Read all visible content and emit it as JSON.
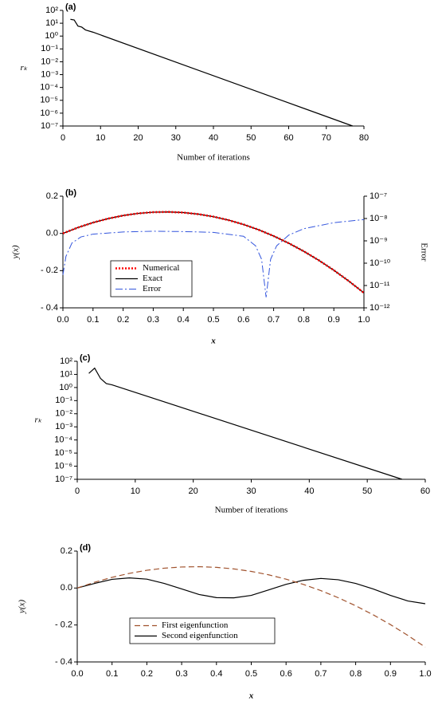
{
  "chart_data": [
    {
      "type": "line",
      "label": "(a)",
      "x_label": "Number of iterations",
      "y_label": "rₖ",
      "xlim": [
        0,
        80
      ],
      "xticks": [
        0,
        10,
        20,
        30,
        40,
        50,
        60,
        70,
        80
      ],
      "ylim": [
        1e-07,
        100
      ],
      "log": true,
      "yticks": [
        {
          "value": 100,
          "label": "10²"
        },
        {
          "value": 10,
          "label": "10¹"
        },
        {
          "value": 1,
          "label": "10⁰"
        },
        {
          "value": 0.1,
          "label": "10⁻¹"
        },
        {
          "value": 0.01,
          "label": "10⁻²"
        },
        {
          "value": 0.001,
          "label": "10⁻³"
        },
        {
          "value": 0.0001,
          "label": "10⁻⁴"
        },
        {
          "value": 1e-05,
          "label": "10⁻⁵"
        },
        {
          "value": 1e-06,
          "label": "10⁻⁶"
        },
        {
          "value": 1e-07,
          "label": "10⁻⁷"
        }
      ],
      "x": [
        2,
        3,
        4,
        5,
        6,
        8,
        77
      ],
      "series": [
        {
          "color": "#000000",
          "style": "solid",
          "values": [
            20,
            18,
            6,
            5,
            3,
            2,
            1e-07
          ]
        }
      ]
    },
    {
      "type": "line",
      "label": "(b)",
      "x_label": "x",
      "y_label": "y(x)",
      "y2_label": "Error",
      "xlim": [
        0,
        1
      ],
      "xticks": [
        {
          "value": 0,
          "label": "0.0"
        },
        0.1,
        0.2,
        0.3,
        0.4,
        0.5,
        0.6,
        0.7,
        0.8,
        0.9,
        {
          "value": 1,
          "label": "1.0"
        }
      ],
      "ylim": [
        -0.4,
        0.2
      ],
      "yticks": [
        {
          "value": -0.4,
          "label": "- 0.4"
        },
        {
          "value": -0.2,
          "label": "- 0.2"
        },
        {
          "value": 0,
          "label": "0.0"
        },
        0.2
      ],
      "y2lim": [
        1e-12,
        1e-07
      ],
      "y2log": true,
      "y2ticks": [
        {
          "value": 1e-07,
          "label": "10⁻⁷"
        },
        {
          "value": 1e-08,
          "label": "10⁻⁸"
        },
        {
          "value": 1e-09,
          "label": "10⁻⁹"
        },
        {
          "value": 1e-10,
          "label": "10⁻¹⁰"
        },
        {
          "value": 1e-11,
          "label": "10⁻¹¹"
        },
        {
          "value": 1e-12,
          "label": "10⁻¹²"
        }
      ],
      "legend": "lower left",
      "x": [
        0,
        0.05,
        0.1,
        0.15,
        0.2,
        0.25,
        0.3,
        0.35,
        0.4,
        0.45,
        0.5,
        0.55,
        0.6,
        0.65,
        0.7,
        0.75,
        0.8,
        0.85,
        0.9,
        0.95,
        1
      ],
      "series": [
        {
          "name": "Numerical",
          "color": "#ff0000",
          "style": "dotted",
          "values": [
            0,
            0.0315,
            0.058,
            0.0795,
            0.096,
            0.1075,
            0.114,
            0.1155,
            0.112,
            0.1035,
            0.09,
            0.0715,
            0.048,
            0.0195,
            -0.014,
            -0.0525,
            -0.096,
            -0.1445,
            -0.198,
            -0.2565,
            -0.32
          ]
        },
        {
          "name": "Exact",
          "color": "#000000",
          "style": "solid",
          "values": [
            0,
            0.0315,
            0.058,
            0.0795,
            0.096,
            0.1075,
            0.114,
            0.1155,
            0.112,
            0.1035,
            0.09,
            0.0715,
            0.048,
            0.0195,
            -0.014,
            -0.0525,
            -0.096,
            -0.1445,
            -0.198,
            -0.2565,
            -0.32
          ]
        },
        {
          "name": "Error",
          "color": "#3355dd",
          "style": "dashdot",
          "axis": "y2",
          "x": [
            0,
            0.01,
            0.03,
            0.06,
            0.1,
            0.2,
            0.3,
            0.4,
            0.5,
            0.6,
            0.64,
            0.66,
            0.675,
            0.69,
            0.71,
            0.75,
            0.8,
            0.9,
            1
          ],
          "values": [
            3e-11,
            2e-10,
            8e-10,
            1.5e-09,
            2e-09,
            2.5e-09,
            2.7e-09,
            2.6e-09,
            2.4e-09,
            1.6e-09,
            6e-10,
            1.5e-10,
            3e-12,
            1.5e-10,
            6e-10,
            1.8e-09,
            3.5e-09,
            6.5e-09,
            9e-09
          ]
        }
      ]
    },
    {
      "type": "line",
      "label": "(c)",
      "x_label": "Number of iterations",
      "y_label": "rₖ",
      "xlim": [
        0,
        60
      ],
      "xticks": [
        0,
        10,
        20,
        30,
        40,
        50,
        60
      ],
      "ylim": [
        1e-07,
        100
      ],
      "log": true,
      "yticks": [
        {
          "value": 100,
          "label": "10²"
        },
        {
          "value": 10,
          "label": "10¹"
        },
        {
          "value": 1,
          "label": "10⁰"
        },
        {
          "value": 0.1,
          "label": "10⁻¹"
        },
        {
          "value": 0.01,
          "label": "10⁻²"
        },
        {
          "value": 0.001,
          "label": "10⁻³"
        },
        {
          "value": 0.0001,
          "label": "10⁻⁴"
        },
        {
          "value": 1e-05,
          "label": "10⁻⁵"
        },
        {
          "value": 1e-06,
          "label": "10⁻⁶"
        },
        {
          "value": 1e-07,
          "label": "10⁻⁷"
        }
      ],
      "x": [
        2,
        3,
        4,
        5,
        6,
        56
      ],
      "series": [
        {
          "color": "#000000",
          "style": "solid",
          "values": [
            12,
            30,
            5,
            2,
            1.6,
            1e-07
          ]
        }
      ]
    },
    {
      "type": "line",
      "label": "(d)",
      "x_label": "x",
      "y_label": "y(x)",
      "xlim": [
        0,
        1
      ],
      "xticks": [
        {
          "value": 0,
          "label": "0.0"
        },
        0.1,
        0.2,
        0.3,
        0.4,
        0.5,
        0.6,
        0.7,
        0.8,
        0.9,
        {
          "value": 1,
          "label": "1.0"
        }
      ],
      "ylim": [
        -0.4,
        0.2
      ],
      "yticks": [
        {
          "value": -0.4,
          "label": "- 0.4"
        },
        {
          "value": -0.2,
          "label": "- 0.2"
        },
        {
          "value": 0,
          "label": "0.0"
        },
        0.2
      ],
      "legend": "lower left",
      "x": [
        0,
        0.05,
        0.1,
        0.15,
        0.2,
        0.25,
        0.3,
        0.35,
        0.4,
        0.45,
        0.5,
        0.55,
        0.6,
        0.65,
        0.7,
        0.75,
        0.8,
        0.85,
        0.9,
        0.95,
        1
      ],
      "series": [
        {
          "name": "First eigenfunction",
          "color": "#a0522d",
          "style": "dashed",
          "values": [
            0,
            0.0315,
            0.058,
            0.0795,
            0.096,
            0.1075,
            0.114,
            0.1155,
            0.112,
            0.1035,
            0.09,
            0.0715,
            0.048,
            0.0195,
            -0.014,
            -0.0525,
            -0.096,
            -0.1445,
            -0.198,
            -0.2565,
            -0.32
          ]
        },
        {
          "name": "Second eigenfunction",
          "color": "#000000",
          "style": "solid",
          "values": [
            0,
            0.025,
            0.047,
            0.055,
            0.048,
            0.025,
            -0.005,
            -0.035,
            -0.052,
            -0.053,
            -0.04,
            -0.01,
            0.02,
            0.042,
            0.052,
            0.045,
            0.025,
            -0.005,
            -0.04,
            -0.07,
            -0.085
          ]
        }
      ]
    }
  ]
}
